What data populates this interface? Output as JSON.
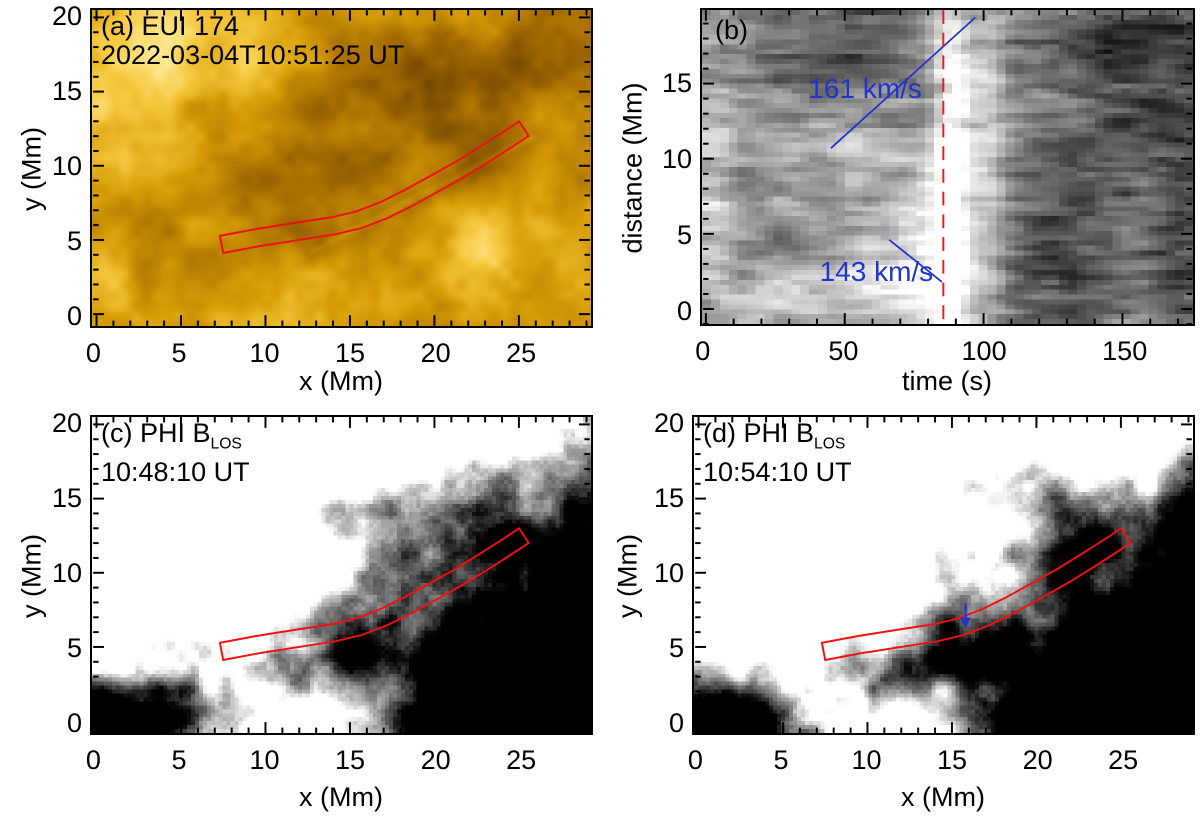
{
  "figure": {
    "colors": {
      "background": "#ffffff",
      "axis": "#000000",
      "slit_red": "#ee1111",
      "dashed_red": "#dd2222",
      "annotation_blue": "#2233cc"
    }
  },
  "chart_data": [
    {
      "id": "a",
      "type": "heatmap",
      "panel_label": "(a) EUI 174",
      "timestamp": "2022-03-04T10:51:25 UT",
      "xlabel": "x (Mm)",
      "ylabel": "y (Mm)",
      "xlim": [
        -0.2,
        29.2
      ],
      "ylim": [
        -0.8,
        20.5
      ],
      "xticks": [
        0,
        5,
        10,
        15,
        20,
        25
      ],
      "yticks": [
        0,
        5,
        10,
        15,
        20
      ],
      "x_minor_step": 1,
      "y_minor_step": 1,
      "colormap": "eui-gold-174",
      "annotations": {
        "slit": {
          "color": "#ee1111",
          "half_width_mm": 0.55,
          "centerline_mm": [
            [
              7.4,
              4.7
            ],
            [
              9.5,
              5.15
            ],
            [
              12,
              5.6
            ],
            [
              14,
              5.95
            ],
            [
              15.5,
              6.35
            ],
            [
              17,
              7.0
            ],
            [
              18.5,
              7.85
            ],
            [
              20,
              8.8
            ],
            [
              21.5,
              9.75
            ],
            [
              23,
              10.8
            ],
            [
              24.5,
              11.9
            ],
            [
              25.3,
              12.5
            ]
          ]
        }
      }
    },
    {
      "id": "b",
      "type": "heatmap",
      "panel_label": "(b)",
      "xlabel": "time (s)",
      "ylabel": "distance (Mm)",
      "xlim": [
        -1,
        175
      ],
      "ylim": [
        -1,
        19.9
      ],
      "xticks": [
        0,
        50,
        100,
        150
      ],
      "yticks": [
        0,
        5,
        10,
        15
      ],
      "x_minor_step": 10,
      "y_minor_step": 1,
      "colormap": "grayscale",
      "annotations": {
        "speed_lines": [
          {
            "label": "161 km/s",
            "from_s_mm": [
              45,
              10.7
            ],
            "to_s_mm": [
              97,
              19.4
            ],
            "label_center_s_mm": [
              57,
              14.7
            ]
          },
          {
            "label": "143 km/s",
            "from_s_mm": [
              66,
              4.6
            ],
            "to_s_mm": [
              85,
              1.8
            ],
            "label_center_s_mm": [
              61,
              2.7
            ]
          }
        ],
        "dashed_vline_s": 85.5
      }
    },
    {
      "id": "c",
      "type": "heatmap",
      "panel_label_main": "(c) PHI B",
      "panel_label_sub": "LOS",
      "timestamp": "10:48:10 UT",
      "xlabel": "x (Mm)",
      "ylabel": "y (Mm)",
      "xlim": [
        -0.2,
        29.2
      ],
      "ylim": [
        -0.8,
        20.5
      ],
      "xticks": [
        0,
        5,
        10,
        15,
        20,
        25
      ],
      "yticks": [
        0,
        5,
        10,
        15,
        20
      ],
      "x_minor_step": 1,
      "y_minor_step": 1,
      "colormap": "grayscale",
      "annotations": {
        "slit": {
          "color": "#ee1111",
          "half_width_mm": 0.55,
          "centerline_mm": [
            [
              7.4,
              4.7
            ],
            [
              9.5,
              5.15
            ],
            [
              12,
              5.6
            ],
            [
              14,
              5.95
            ],
            [
              15.5,
              6.35
            ],
            [
              17,
              7.0
            ],
            [
              18.5,
              7.85
            ],
            [
              20,
              8.8
            ],
            [
              21.5,
              9.75
            ],
            [
              23,
              10.8
            ],
            [
              24.5,
              11.9
            ],
            [
              25.3,
              12.5
            ]
          ]
        }
      }
    },
    {
      "id": "d",
      "type": "heatmap",
      "panel_label_main": "(d) PHI B",
      "panel_label_sub": "LOS",
      "timestamp": "10:54:10 UT",
      "xlabel": "x (Mm)",
      "ylabel": "y (Mm)",
      "xlim": [
        -0.2,
        29.2
      ],
      "ylim": [
        -0.8,
        20.5
      ],
      "xticks": [
        0,
        5,
        10,
        15,
        20,
        25
      ],
      "yticks": [
        0,
        5,
        10,
        15,
        20
      ],
      "x_minor_step": 1,
      "y_minor_step": 1,
      "colormap": "grayscale",
      "annotations": {
        "slit": {
          "color": "#ee1111",
          "half_width_mm": 0.55,
          "centerline_mm": [
            [
              7.4,
              4.7
            ],
            [
              9.5,
              5.15
            ],
            [
              12,
              5.6
            ],
            [
              14,
              5.95
            ],
            [
              15.5,
              6.35
            ],
            [
              17,
              7.0
            ],
            [
              18.5,
              7.85
            ],
            [
              20,
              8.8
            ],
            [
              21.5,
              9.75
            ],
            [
              23,
              10.8
            ],
            [
              24.5,
              11.9
            ],
            [
              25.3,
              12.5
            ]
          ]
        },
        "arrow": {
          "color": "#2233cc",
          "from_mm": [
            15.8,
            7.95
          ],
          "to_mm": [
            15.8,
            6.25
          ]
        }
      }
    }
  ]
}
